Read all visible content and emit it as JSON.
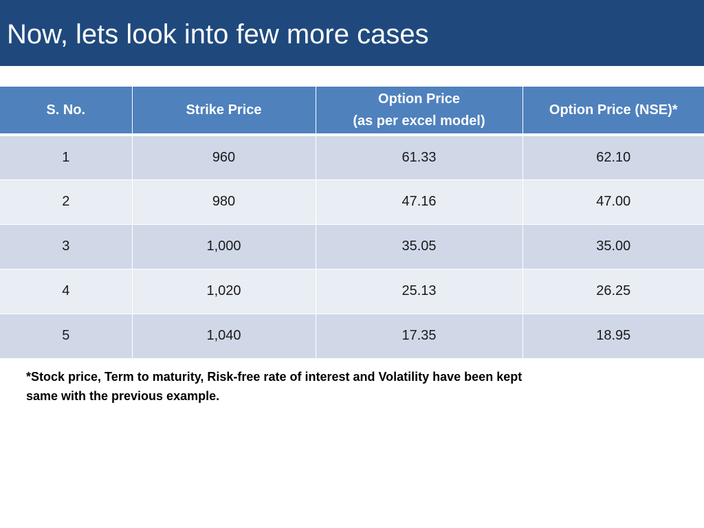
{
  "slide": {
    "title": "Now, lets look into few more cases"
  },
  "table": {
    "headers": {
      "sno": "S. No.",
      "strike": "Strike Price",
      "option_line1": "Option Price",
      "option_line2": "(as per excel model)",
      "nse": "Option Price (NSE)*"
    },
    "rows": [
      {
        "sno": "1",
        "strike": "960",
        "excel": "61.33",
        "nse": "62.10"
      },
      {
        "sno": "2",
        "strike": "980",
        "excel": "47.16",
        "nse": "47.00"
      },
      {
        "sno": "3",
        "strike": "1,000",
        "excel": "35.05",
        "nse": "35.00"
      },
      {
        "sno": "4",
        "strike": "1,020",
        "excel": "25.13",
        "nse": "26.25"
      },
      {
        "sno": "5",
        "strike": "1,040",
        "excel": "17.35",
        "nse": "18.95"
      }
    ]
  },
  "footnote": {
    "line1": "*Stock price, Term to maturity, Risk-free rate of interest and  Volatility have been kept",
    "line2": "same with the previous example."
  },
  "colors": {
    "title_bar": "#1f497d",
    "header_bg": "#4f81bd",
    "row_odd": "#d0d8e8",
    "row_even": "#e9edf4"
  }
}
